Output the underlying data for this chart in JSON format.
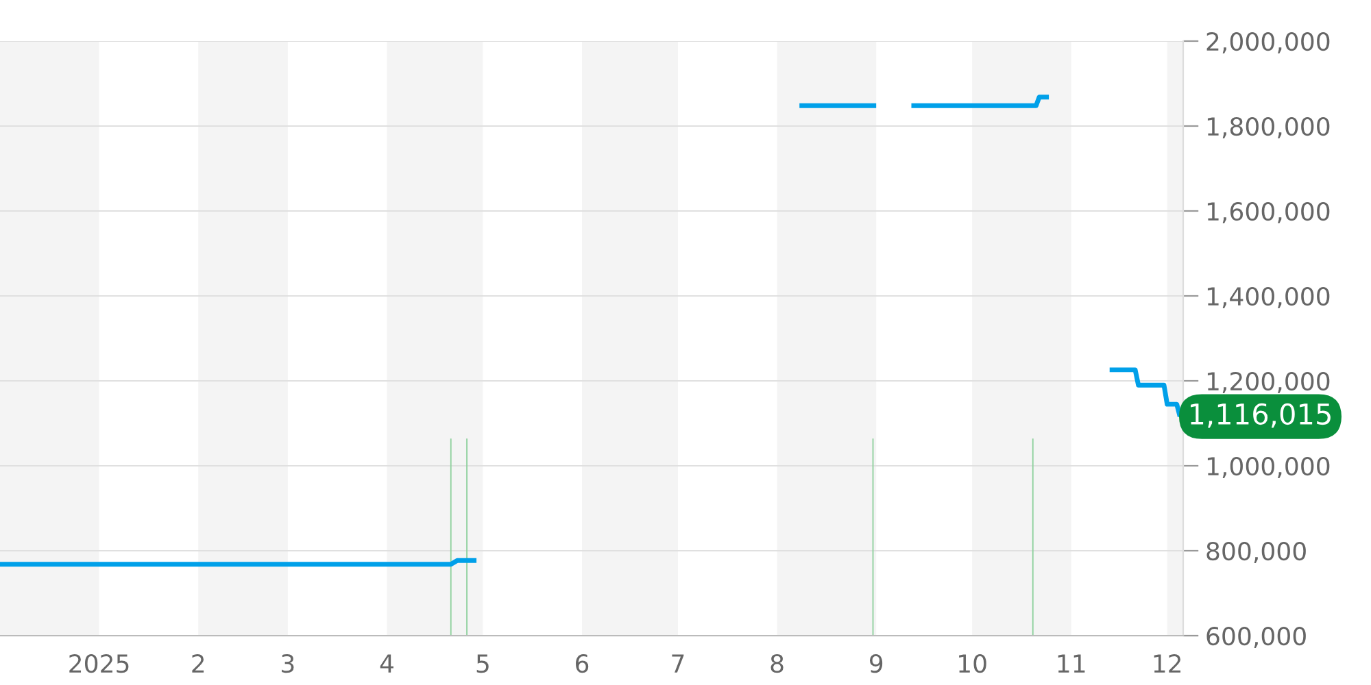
{
  "chart_data": {
    "type": "line",
    "series": [
      {
        "color": "#00a0e9",
        "x": [
          "2024-12-01",
          "2025-04-21",
          "2025-04-23",
          "2025-04-29",
          "2025-06-15",
          "2025-08-08",
          "2025-09-01",
          "2025-09-06",
          "2025-09-12",
          "2025-10-21",
          "2025-10-22",
          "2025-10-25",
          "2025-11-03",
          "2025-11-13",
          "2025-11-21",
          "2025-11-22",
          "2025-11-30",
          "2025-12-01",
          "2025-12-04",
          "2025-12-05"
        ],
        "values": [
          768000,
          768000,
          777000,
          777000,
          null,
          1848000,
          1848000,
          null,
          1848000,
          1848000,
          1868000,
          1868000,
          null,
          1226000,
          1226000,
          1190000,
          1190000,
          1145000,
          1145000,
          1116015
        ]
      },
      {
        "type": "bar",
        "color": "#8fd19e",
        "x": [
          "2025-04-21",
          "2025-04-26",
          "2025-08-31",
          "2025-10-20"
        ],
        "values": [
          1064000,
          1064000,
          1064000,
          1064000
        ]
      }
    ],
    "xlim": [
      "2024-12-01",
      "2025-12-06"
    ],
    "xticks": [
      {
        "value": "2025-01-01",
        "label": "2025"
      },
      {
        "value": "2025-02-01",
        "label": "2"
      },
      {
        "value": "2025-03-01",
        "label": "3"
      },
      {
        "value": "2025-04-01",
        "label": "4"
      },
      {
        "value": "2025-05-01",
        "label": "5"
      },
      {
        "value": "2025-06-01",
        "label": "6"
      },
      {
        "value": "2025-07-01",
        "label": "7"
      },
      {
        "value": "2025-08-01",
        "label": "8"
      },
      {
        "value": "2025-09-01",
        "label": "9"
      },
      {
        "value": "2025-10-01",
        "label": "10"
      },
      {
        "value": "2025-11-01",
        "label": "11"
      },
      {
        "value": "2025-12-01",
        "label": "12"
      }
    ],
    "ylim": [
      600000,
      2000000
    ],
    "yticks": [
      {
        "value": 600000,
        "label": "600,000"
      },
      {
        "value": 800000,
        "label": "800,000"
      },
      {
        "value": 1000000,
        "label": "1,000,000"
      },
      {
        "value": 1200000,
        "label": "1,200,000"
      },
      {
        "value": 1400000,
        "label": "1,400,000"
      },
      {
        "value": 1600000,
        "label": "1,600,000"
      },
      {
        "value": 1800000,
        "label": "1,800,000"
      },
      {
        "value": 2000000,
        "label": "2,000,000"
      }
    ],
    "grid": "y",
    "bands": [
      {
        "axis": "x",
        "from": "2024-12-01",
        "to": "2025-01-01",
        "color": "#f4f4f4"
      },
      {
        "axis": "x",
        "from": "2025-02-01",
        "to": "2025-03-01",
        "color": "#f4f4f4"
      },
      {
        "axis": "x",
        "from": "2025-04-01",
        "to": "2025-05-01",
        "color": "#f4f4f4"
      },
      {
        "axis": "x",
        "from": "2025-06-01",
        "to": "2025-07-01",
        "color": "#f4f4f4"
      },
      {
        "axis": "x",
        "from": "2025-08-01",
        "to": "2025-09-01",
        "color": "#f4f4f4"
      },
      {
        "axis": "x",
        "from": "2025-10-01",
        "to": "2025-11-01",
        "color": "#f4f4f4"
      },
      {
        "axis": "x",
        "from": "2025-12-01",
        "to": "2025-12-06",
        "color": "#f4f4f4"
      }
    ],
    "annotations": [
      {
        "text": "1,116,015",
        "x": "2025-12-05",
        "y": 1116015
      }
    ]
  }
}
